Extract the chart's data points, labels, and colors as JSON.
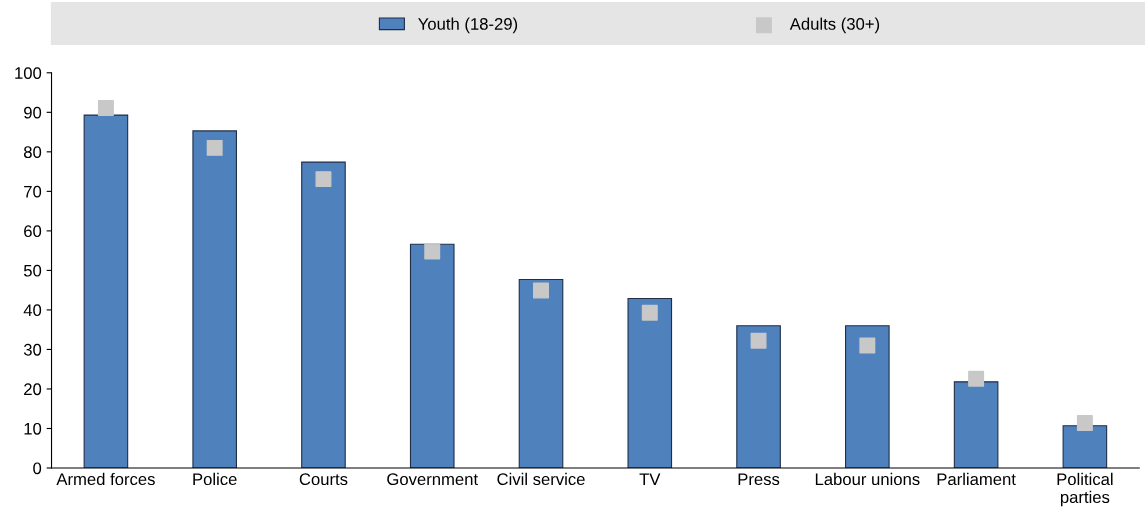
{
  "chart_data": {
    "type": "bar",
    "categories": [
      "Armed forces",
      "Police",
      "Courts",
      "Government",
      "Civil service",
      "TV",
      "Press",
      "Labour unions",
      "Parliament",
      "Political\nparties"
    ],
    "series": [
      {
        "name": "Youth (18-29)",
        "color": "#4f81bd",
        "values": [
          89.3,
          85.3,
          77.4,
          56.6,
          47.7,
          42.9,
          36.0,
          36.0,
          21.8,
          10.7
        ]
      },
      {
        "name": "Adults (30+)",
        "color": "#c8c8c8",
        "type": "scatter",
        "marker": "square",
        "values": [
          91.1,
          81.0,
          73.1,
          54.8,
          44.9,
          39.3,
          32.2,
          31.0,
          22.6,
          11.4
        ]
      }
    ],
    "ylim": [
      0,
      100
    ],
    "yticks": [
      0,
      10,
      20,
      30,
      40,
      50,
      60,
      70,
      80,
      90,
      100
    ],
    "grid": false,
    "legend": "top"
  }
}
